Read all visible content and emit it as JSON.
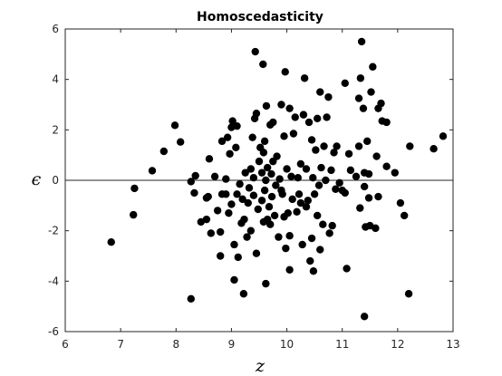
{
  "chart_data": {
    "type": "scatter",
    "title": "Homoscedasticity",
    "xlabel": "z",
    "ylabel": "ϵ",
    "xlim": [
      6,
      13
    ],
    "ylim": [
      -6,
      6
    ],
    "xticks": [
      6,
      7,
      8,
      9,
      10,
      11,
      12,
      13
    ],
    "yticks": [
      -6,
      -4,
      -2,
      0,
      2,
      4,
      6
    ],
    "reference_line_y": 0,
    "marker_color": "#000000",
    "points": [
      [
        6.83,
        -2.45
      ],
      [
        7.25,
        -0.32
      ],
      [
        7.23,
        -1.37
      ],
      [
        7.57,
        0.38
      ],
      [
        7.78,
        1.15
      ],
      [
        7.98,
        2.18
      ],
      [
        8.08,
        1.52
      ],
      [
        8.27,
        -4.7
      ],
      [
        8.27,
        -0.05
      ],
      [
        8.33,
        -0.5
      ],
      [
        8.35,
        0.18
      ],
      [
        8.45,
        -1.65
      ],
      [
        8.55,
        -1.55
      ],
      [
        8.58,
        -0.65
      ],
      [
        8.6,
        0.85
      ],
      [
        8.63,
        -2.1
      ],
      [
        8.7,
        0.15
      ],
      [
        8.75,
        -1.2
      ],
      [
        8.8,
        -2.05
      ],
      [
        8.8,
        -3.0
      ],
      [
        8.83,
        -0.55
      ],
      [
        8.83,
        1.55
      ],
      [
        8.9,
        -0.55
      ],
      [
        8.9,
        0.05
      ],
      [
        8.93,
        1.7
      ],
      [
        8.95,
        -1.3
      ],
      [
        8.97,
        1.05
      ],
      [
        9.0,
        -0.95
      ],
      [
        9.0,
        2.1
      ],
      [
        9.02,
        2.35
      ],
      [
        9.05,
        -3.95
      ],
      [
        9.05,
        -2.55
      ],
      [
        9.08,
        1.3
      ],
      [
        9.1,
        -0.55
      ],
      [
        9.12,
        -3.05
      ],
      [
        9.15,
        -0.15
      ],
      [
        9.18,
        -1.7
      ],
      [
        9.2,
        -0.75
      ],
      [
        9.22,
        -4.5
      ],
      [
        9.23,
        -1.55
      ],
      [
        9.25,
        0.3
      ],
      [
        9.28,
        -2.25
      ],
      [
        9.3,
        -0.9
      ],
      [
        9.32,
        -0.3
      ],
      [
        9.35,
        -2.0
      ],
      [
        9.35,
        0.45
      ],
      [
        9.38,
        1.7
      ],
      [
        9.4,
        -0.6
      ],
      [
        9.4,
        0.1
      ],
      [
        9.42,
        2.45
      ],
      [
        9.43,
        5.1
      ],
      [
        9.45,
        -2.9
      ],
      [
        9.45,
        2.65
      ],
      [
        9.48,
        -1.15
      ],
      [
        9.5,
        0.75
      ],
      [
        9.52,
        1.3
      ],
      [
        9.55,
        -0.8
      ],
      [
        9.55,
        0.3
      ],
      [
        9.57,
        4.6
      ],
      [
        9.58,
        -1.65
      ],
      [
        9.6,
        -0.4
      ],
      [
        9.6,
        1.55
      ],
      [
        9.62,
        -4.1
      ],
      [
        9.62,
        0.0
      ],
      [
        9.63,
        2.95
      ],
      [
        9.65,
        -1.55
      ],
      [
        9.65,
        0.5
      ],
      [
        9.68,
        -1.05
      ],
      [
        9.7,
        2.2
      ],
      [
        9.72,
        0.25
      ],
      [
        9.73,
        -0.65
      ],
      [
        9.75,
        0.75
      ],
      [
        9.75,
        2.3
      ],
      [
        9.78,
        -1.4
      ],
      [
        9.8,
        -0.2
      ],
      [
        9.82,
        0.95
      ],
      [
        9.85,
        -2.25
      ],
      [
        9.87,
        0.05
      ],
      [
        9.9,
        -0.4
      ],
      [
        9.9,
        3.0
      ],
      [
        9.92,
        -0.55
      ],
      [
        9.95,
        1.75
      ],
      [
        9.97,
        4.3
      ],
      [
        9.98,
        -2.7
      ],
      [
        10.0,
        0.45
      ],
      [
        10.02,
        -1.3
      ],
      [
        10.05,
        -3.55
      ],
      [
        10.05,
        2.85
      ],
      [
        10.08,
        0.15
      ],
      [
        10.1,
        -0.75
      ],
      [
        10.12,
        1.85
      ],
      [
        10.15,
        2.5
      ],
      [
        10.18,
        -1.25
      ],
      [
        10.2,
        0.1
      ],
      [
        10.22,
        -0.55
      ],
      [
        10.25,
        0.65
      ],
      [
        10.28,
        -2.55
      ],
      [
        10.3,
        2.6
      ],
      [
        10.32,
        4.05
      ],
      [
        10.35,
        -1.05
      ],
      [
        10.35,
        0.45
      ],
      [
        10.38,
        -0.8
      ],
      [
        10.4,
        2.3
      ],
      [
        10.42,
        -3.2
      ],
      [
        10.45,
        -2.3
      ],
      [
        10.47,
        0.1
      ],
      [
        10.48,
        -3.6
      ],
      [
        10.5,
        -0.55
      ],
      [
        10.52,
        1.2
      ],
      [
        10.55,
        -1.4
      ],
      [
        10.55,
        2.45
      ],
      [
        10.58,
        -0.2
      ],
      [
        10.6,
        3.5
      ],
      [
        10.6,
        -2.75
      ],
      [
        10.62,
        0.5
      ],
      [
        10.65,
        -1.75
      ],
      [
        10.67,
        1.35
      ],
      [
        10.7,
        0.0
      ],
      [
        10.72,
        2.5
      ],
      [
        10.75,
        3.3
      ],
      [
        10.77,
        -2.1
      ],
      [
        10.8,
        0.4
      ],
      [
        10.82,
        -1.8
      ],
      [
        10.85,
        1.1
      ],
      [
        10.88,
        -0.35
      ],
      [
        10.9,
        1.35
      ],
      [
        10.95,
        -0.1
      ],
      [
        11.05,
        3.85
      ],
      [
        11.05,
        -0.5
      ],
      [
        11.08,
        -3.5
      ],
      [
        11.12,
        1.05
      ],
      [
        11.15,
        0.4
      ],
      [
        11.25,
        0.15
      ],
      [
        11.3,
        3.25
      ],
      [
        11.3,
        1.35
      ],
      [
        11.32,
        -1.1
      ],
      [
        11.33,
        4.05
      ],
      [
        11.35,
        5.5
      ],
      [
        11.38,
        2.85
      ],
      [
        11.4,
        -5.4
      ],
      [
        11.4,
        -0.25
      ],
      [
        11.42,
        -1.85
      ],
      [
        11.45,
        1.55
      ],
      [
        11.48,
        -0.7
      ],
      [
        11.48,
        0.25
      ],
      [
        11.5,
        -1.8
      ],
      [
        11.52,
        3.5
      ],
      [
        11.55,
        4.5
      ],
      [
        11.6,
        -1.9
      ],
      [
        11.62,
        0.95
      ],
      [
        11.65,
        2.85
      ],
      [
        11.65,
        -0.65
      ],
      [
        11.72,
        2.35
      ],
      [
        11.8,
        2.3
      ],
      [
        11.95,
        0.3
      ],
      [
        12.05,
        -0.9
      ],
      [
        12.12,
        -1.4
      ],
      [
        12.2,
        -4.5
      ],
      [
        12.22,
        1.35
      ],
      [
        12.65,
        1.25
      ],
      [
        12.82,
        1.75
      ],
      [
        11.8,
        0.55
      ],
      [
        9.7,
        -1.75
      ],
      [
        10.05,
        -2.2
      ],
      [
        9.1,
        2.15
      ],
      [
        10.45,
        1.6
      ],
      [
        9.58,
        1.1
      ],
      [
        11.4,
        0.3
      ],
      [
        11.7,
        3.05
      ],
      [
        8.55,
        -0.7
      ],
      [
        9.95,
        -1.45
      ],
      [
        10.25,
        -0.9
      ],
      [
        11.0,
        -0.4
      ]
    ]
  }
}
